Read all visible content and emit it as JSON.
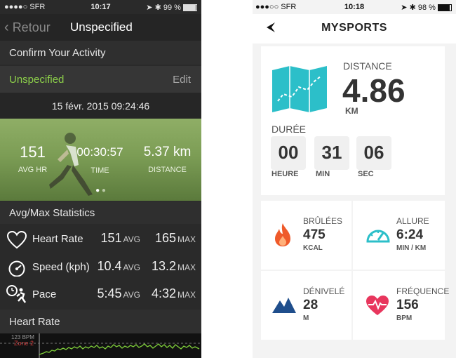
{
  "left_app": {
    "status_bar": {
      "carrier": "●●●●○ SFR",
      "time": "10:17",
      "battery": "99 %"
    },
    "nav": {
      "back_label": "Retour",
      "title": "Unspecified"
    },
    "confirm_header": "Confirm Your Activity",
    "activity": {
      "type": "Unspecified",
      "edit_label": "Edit"
    },
    "datetime": "15 févr. 2015 09:24:46",
    "summary": [
      {
        "value": "151",
        "label": "AVG HR"
      },
      {
        "value": "00:30:57",
        "label": "TIME"
      },
      {
        "value": "5.37 km",
        "label": "DISTANCE"
      }
    ],
    "stats_header": "Avg/Max Statistics",
    "stats": [
      {
        "icon": "heart-icon",
        "label": "Heart Rate",
        "avg": "151",
        "avg_unit": "AVG",
        "max": "165",
        "max_unit": "MAX"
      },
      {
        "icon": "speedometer-icon",
        "label": "Speed (kph)",
        "avg": "10.4",
        "avg_unit": "AVG",
        "max": "13.2",
        "max_unit": "MAX"
      },
      {
        "icon": "runner-clock-icon",
        "label": "Pace",
        "avg": "5:45",
        "avg_unit": "AVG",
        "max": "4:32",
        "max_unit": "MAX"
      }
    ],
    "hr_header": "Heart Rate",
    "graph": {
      "bpm_label": "123 BPM",
      "zone_label": "Zone 2"
    }
  },
  "right_app": {
    "status_bar": {
      "carrier": "●●●○○ SFR",
      "time": "10:18",
      "battery": "98 %"
    },
    "nav": {
      "title": "MYSPORTS"
    },
    "distance": {
      "label": "DISTANCE",
      "value": "4.86",
      "unit": "KM"
    },
    "duration": {
      "label": "DURÉE",
      "hours": "00",
      "hours_label": "HEURE",
      "minutes": "31",
      "minutes_label": "MIN",
      "seconds": "06",
      "seconds_label": "SEC"
    },
    "metrics": [
      {
        "label": "BRÛLÉES",
        "value": "475",
        "unit": "KCAL"
      },
      {
        "label": "ALLURE",
        "value": "6:24",
        "unit": "MIN / KM"
      },
      {
        "label": "DÉNIVELÉ",
        "value": "28",
        "unit": "M"
      },
      {
        "label": "FRÉQUENCE",
        "value": "156",
        "unit": "BPM"
      }
    ],
    "colors": {
      "accent_teal": "#2cbfc9",
      "flame": "#ef5a2a",
      "mountain": "#1f4e8c",
      "heart": "#e8365d"
    }
  }
}
